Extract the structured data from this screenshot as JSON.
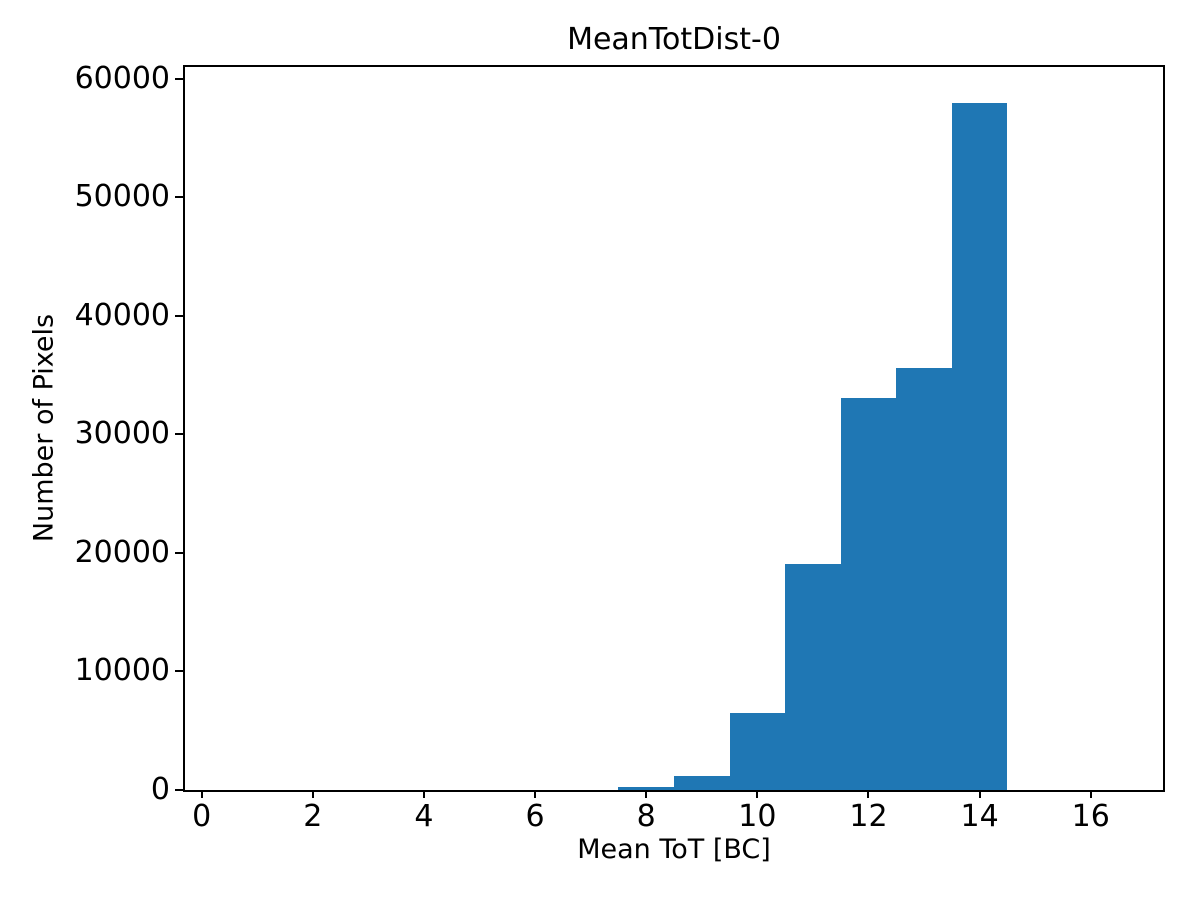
{
  "chart_data": {
    "type": "bar",
    "subtype": "histogram",
    "title": "MeanTotDist-0",
    "xlabel": "Mean ToT [BC]",
    "ylabel": "Number of Pixels",
    "bin_edges": [
      0.5,
      1.5,
      2.5,
      3.5,
      4.5,
      5.5,
      6.5,
      7.5,
      8.5,
      9.5,
      10.5,
      11.5,
      12.5,
      13.5,
      14.5,
      15.5,
      16.5
    ],
    "counts": [
      0,
      0,
      0,
      0,
      0,
      0,
      0,
      290,
      1200,
      6500,
      19100,
      33100,
      35600,
      58000,
      0,
      0
    ],
    "xlim": [
      -0.3,
      17.3
    ],
    "ylim": [
      0,
      61000
    ],
    "xticks": [
      0,
      2,
      4,
      6,
      8,
      10,
      12,
      14,
      16
    ],
    "yticks": [
      0,
      10000,
      20000,
      30000,
      40000,
      50000,
      60000
    ],
    "bar_color": "#1f77b4",
    "axis_color": "#000000",
    "background_color": "#ffffff",
    "grid": false,
    "legend": null
  }
}
